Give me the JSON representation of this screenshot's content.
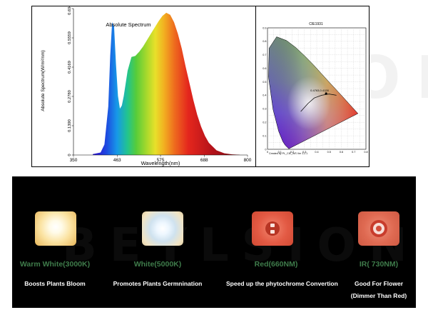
{
  "watermark": "BEYLSION",
  "chart_data": [
    {
      "type": "area",
      "title": "Absolute Spectrum",
      "xlabel": "Wavelength(nm)",
      "ylabel": "Absolute Spectrum(W/m²/nm)",
      "xlim": [
        350,
        800
      ],
      "ylim": [
        0,
        0.6949
      ],
      "xticks": [
        "350",
        "463",
        "575",
        "688",
        "800"
      ],
      "yticks": [
        "0",
        "0.1390",
        "0.2780",
        "0.4169",
        "0.5559",
        "0.6949"
      ],
      "grid": false,
      "x": [
        400,
        420,
        430,
        440,
        445,
        450,
        455,
        460,
        465,
        470,
        475,
        480,
        485,
        490,
        500,
        510,
        520,
        530,
        540,
        550,
        560,
        570,
        580,
        590,
        600,
        610,
        620,
        630,
        640,
        650,
        660,
        670,
        680,
        690,
        700,
        720,
        740,
        760,
        780
      ],
      "y": [
        0.004,
        0.012,
        0.05,
        0.23,
        0.47,
        0.63,
        0.61,
        0.43,
        0.28,
        0.22,
        0.235,
        0.28,
        0.34,
        0.4,
        0.465,
        0.47,
        0.49,
        0.515,
        0.545,
        0.575,
        0.605,
        0.635,
        0.66,
        0.675,
        0.665,
        0.63,
        0.575,
        0.505,
        0.42,
        0.34,
        0.26,
        0.19,
        0.135,
        0.09,
        0.058,
        0.022,
        0.008,
        0.003,
        0.001
      ]
    },
    {
      "type": "scatter",
      "title": "CIE1931",
      "xlim": [
        0,
        0.8
      ],
      "ylim": [
        0,
        0.9
      ],
      "xticks": [
        "0",
        "0.1",
        "0.2",
        "0.3",
        "0.4",
        "0.5",
        "0.6",
        "0.7",
        "0.8"
      ],
      "yticks": [
        "0",
        "0.1",
        "0.2",
        "0.3",
        "0.4",
        "0.5",
        "0.6",
        "0.7",
        "0.8",
        "0.9"
      ],
      "point_label": "0.4763,0.4128",
      "point": [
        0.4763,
        0.4128
      ],
      "locus_x": [
        0.175,
        0.174,
        0.172,
        0.167,
        0.144,
        0.124,
        0.091,
        0.045,
        0.008,
        0.014,
        0.074,
        0.155,
        0.23,
        0.302,
        0.374,
        0.444,
        0.512,
        0.575,
        0.627,
        0.665,
        0.692,
        0.713,
        0.725,
        0.735
      ],
      "locus_y": [
        0.005,
        0.005,
        0.005,
        0.009,
        0.03,
        0.058,
        0.133,
        0.295,
        0.538,
        0.75,
        0.834,
        0.806,
        0.754,
        0.692,
        0.625,
        0.555,
        0.487,
        0.425,
        0.373,
        0.335,
        0.308,
        0.287,
        0.275,
        0.265
      ],
      "planck_x": [
        0.27,
        0.3,
        0.33,
        0.38,
        0.44,
        0.5,
        0.56
      ],
      "planck_y": [
        0.28,
        0.31,
        0.34,
        0.38,
        0.4,
        0.41,
        0.4
      ],
      "footer": "Created by PL_CIE_WS Ver 1.2.1"
    }
  ],
  "leds": [
    {
      "name": "Warm White(3000K)",
      "description": "Boosts Plants Bloom",
      "description2": ""
    },
    {
      "name": "White(5000K)",
      "description": "Promotes Plants Germnination",
      "description2": ""
    },
    {
      "name": "Red(660NM)",
      "description": "Speed up the phytochrome Convertion",
      "description2": ""
    },
    {
      "name": "IR( 730NM)",
      "description": "Good For Flower",
      "description2": "(Dimmer Than Red)"
    }
  ]
}
